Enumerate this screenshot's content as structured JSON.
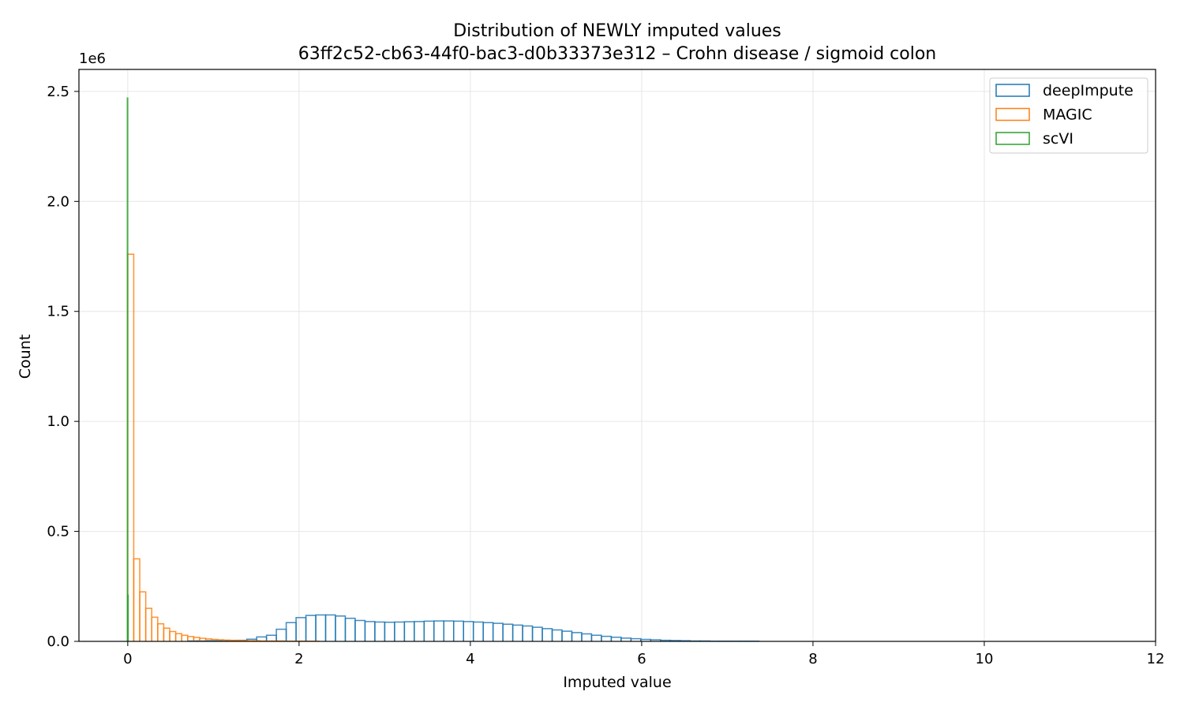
{
  "chart_data": {
    "type": "histogram",
    "title": "Distribution of NEWLY imputed values",
    "subtitle": "63ff2c52-cb63-44f0-bac3-d0b33373e312 – Crohn disease / sigmoid colon",
    "xlabel": "Imputed value",
    "ylabel": "Count",
    "y_offset_label": "1e6",
    "xlim": [
      -0.57,
      12
    ],
    "ylim": [
      0,
      2.6
    ],
    "x_ticks": [
      0,
      2,
      4,
      6,
      8,
      10,
      12
    ],
    "y_ticks": [
      0.0,
      0.5,
      1.0,
      1.5,
      2.0,
      2.5
    ],
    "x_tick_labels": [
      "0",
      "2",
      "4",
      "6",
      "8",
      "10",
      "12"
    ],
    "y_tick_labels": [
      "0.0",
      "0.5",
      "1.0",
      "1.5",
      "2.0",
      "2.5"
    ],
    "grid": true,
    "legend_position": "top-right",
    "y_unit_multiplier": 1000000,
    "series": [
      {
        "name": "deepImpute",
        "color": "#1f77b4",
        "bin_edges": [
          0.7,
          0.815,
          0.93,
          1.045,
          1.16,
          1.275,
          1.39,
          1.505,
          1.62,
          1.735,
          1.85,
          1.965,
          2.08,
          2.195,
          2.31,
          2.425,
          2.54,
          2.655,
          2.77,
          2.885,
          3.0,
          3.115,
          3.23,
          3.345,
          3.46,
          3.575,
          3.69,
          3.805,
          3.92,
          4.035,
          4.15,
          4.265,
          4.38,
          4.495,
          4.61,
          4.725,
          4.84,
          4.955,
          5.07,
          5.185,
          5.3,
          5.415,
          5.53,
          5.645,
          5.76,
          5.875,
          5.99,
          6.105,
          6.22,
          6.335,
          6.45,
          6.565,
          6.68,
          6.795,
          6.91,
          7.025,
          7.14,
          7.255,
          7.37
        ],
        "counts": [
          0.002,
          0.002,
          0.003,
          0.003,
          0.004,
          0.005,
          0.01,
          0.02,
          0.028,
          0.055,
          0.085,
          0.108,
          0.118,
          0.12,
          0.12,
          0.115,
          0.105,
          0.095,
          0.09,
          0.088,
          0.087,
          0.088,
          0.089,
          0.09,
          0.092,
          0.093,
          0.093,
          0.092,
          0.09,
          0.088,
          0.085,
          0.082,
          0.078,
          0.074,
          0.07,
          0.064,
          0.058,
          0.052,
          0.046,
          0.04,
          0.034,
          0.028,
          0.023,
          0.019,
          0.015,
          0.012,
          0.009,
          0.007,
          0.005,
          0.004,
          0.003,
          0.002,
          0.002,
          0.001,
          0.001,
          0.001,
          0.001,
          0.001
        ]
      },
      {
        "name": "MAGIC",
        "color": "#ff7f0e",
        "bin_edges": [
          0.0,
          0.07,
          0.14,
          0.21,
          0.28,
          0.35,
          0.42,
          0.49,
          0.56,
          0.63,
          0.7,
          0.77,
          0.84,
          0.91,
          0.98,
          1.05,
          1.12,
          1.19,
          1.26,
          1.33,
          1.4,
          1.47,
          1.54,
          1.61,
          1.68,
          1.75,
          1.82,
          1.89,
          1.96,
          2.03,
          2.1,
          2.23
        ],
        "counts": [
          1.76,
          0.375,
          0.225,
          0.15,
          0.11,
          0.08,
          0.06,
          0.045,
          0.035,
          0.028,
          0.022,
          0.018,
          0.014,
          0.011,
          0.009,
          0.007,
          0.006,
          0.005,
          0.004,
          0.004,
          0.003,
          0.003,
          0.002,
          0.002,
          0.002,
          0.002,
          0.001,
          0.001,
          0.001,
          0.001,
          0.001
        ]
      },
      {
        "name": "scVI",
        "color": "#2ca02c",
        "bin_edges": [
          -0.005,
          0.0,
          0.005
        ],
        "counts": [
          2.47,
          0.21
        ]
      }
    ]
  }
}
